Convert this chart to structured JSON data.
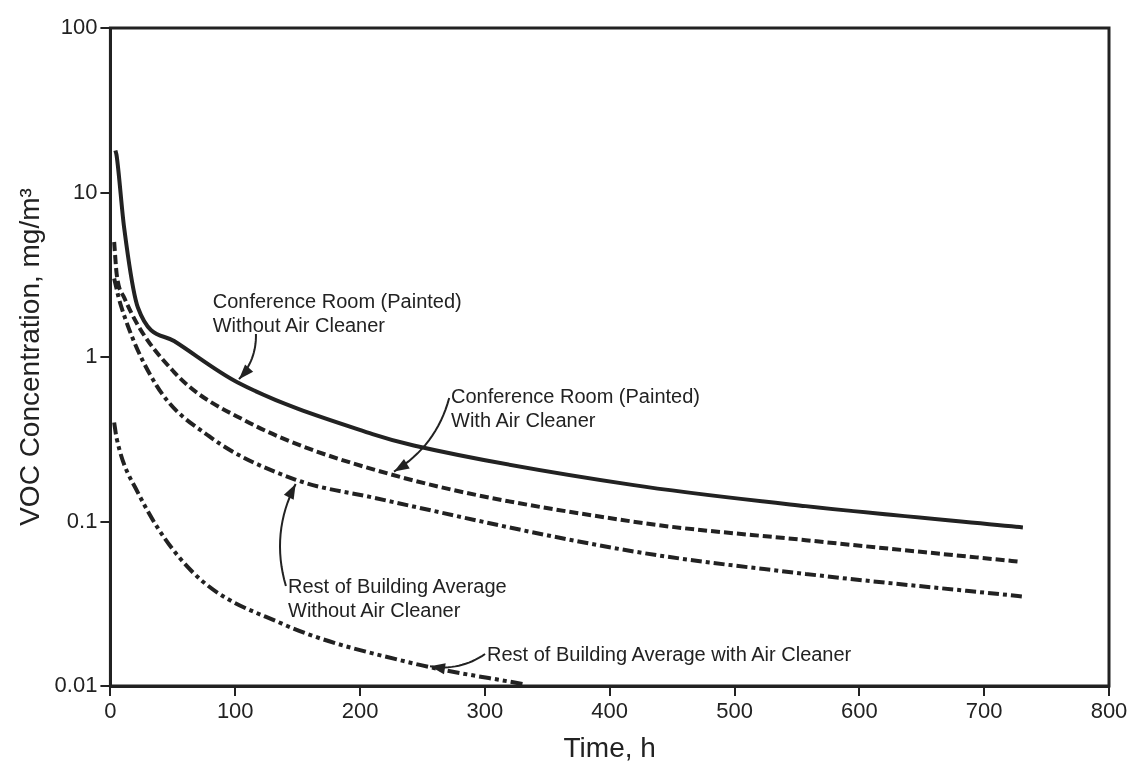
{
  "chart_data": {
    "type": "line",
    "xlabel": "Time, h",
    "ylabel": "VOC Concentration, mg/m³",
    "log": "y",
    "grid": false,
    "legend": false,
    "marker": "none",
    "xlim": [
      0,
      800
    ],
    "xticks": [
      0,
      100,
      200,
      300,
      400,
      500,
      600,
      700,
      800
    ],
    "ylim": [
      0.01,
      100
    ],
    "yticks": [
      0.01,
      0.1,
      1,
      10,
      100
    ],
    "series": [
      {
        "color": "#222222",
        "line_style": "solid",
        "x": [
          4,
          5,
          11,
          22,
          51,
          102,
          210,
          243,
          418,
          557,
          731
        ],
        "values": [
          18,
          16.7,
          6.1,
          2.0,
          1.25,
          0.7,
          0.34,
          0.29,
          0.167,
          0.124,
          0.092
        ]
      },
      {
        "color": "#222222",
        "line_style": "dashed",
        "x": [
          3,
          5,
          11,
          51,
          108,
          223,
          418,
          557,
          728
        ],
        "values": [
          5,
          3.2,
          2.3,
          0.81,
          0.41,
          0.195,
          0.1,
          0.077,
          0.057
        ]
      },
      {
        "color": "#222222",
        "line_style": "dashdot",
        "x": [
          3,
          8,
          37,
          79,
          148,
          210,
          418,
          557,
          731
        ],
        "values": [
          3,
          2.1,
          0.67,
          0.33,
          0.18,
          0.14,
          0.066,
          0.048,
          0.035
        ]
      },
      {
        "color": "#222222",
        "line_style": "dashdotdot",
        "x": [
          3,
          5,
          22,
          65,
          137,
          243,
          333
        ],
        "values": [
          0.4,
          0.32,
          0.15,
          0.05,
          0.024,
          0.0137,
          0.0102
        ]
      }
    ],
    "annotations": [
      {
        "text": "Conference Room (Painted)\nWithout Air Cleaner",
        "x": 102,
        "y": 0.7
      },
      "Conference Room (Painted)\nWith Air Cleaner",
      "Rest of Building Average\nWithout Air Cleaner",
      "Rest of Building Average with Air Cleaner"
    ]
  }
}
